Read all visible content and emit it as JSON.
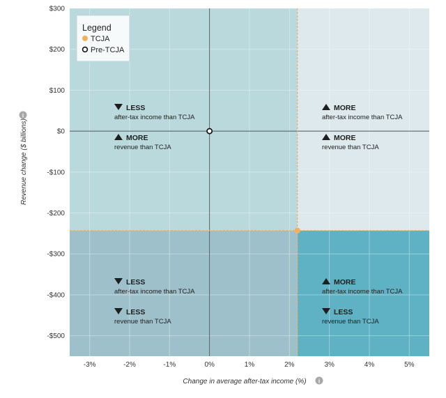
{
  "chart_data": {
    "type": "scatter",
    "xlabel": "Change in average after-tax income (%)",
    "ylabel": "Revenue change ($ billions)",
    "xlim": [
      -3.5,
      5.5
    ],
    "ylim": [
      -550,
      300
    ],
    "x_ticks": [
      -3,
      -2,
      -1,
      0,
      1,
      2,
      3,
      4,
      5
    ],
    "x_tick_labels": [
      "-3%",
      "-2%",
      "-1%",
      "0%",
      "1%",
      "2%",
      "3%",
      "4%",
      "5%"
    ],
    "y_ticks": [
      300,
      200,
      100,
      0,
      -100,
      -200,
      -300,
      -400,
      -500
    ],
    "y_tick_labels": [
      "$300",
      "$200",
      "$100",
      "$0",
      "-$100",
      "-$200",
      "-$300",
      "-$400",
      "-$500"
    ],
    "grid": true,
    "legend": {
      "title": "Legend",
      "placement": "top-left",
      "items": [
        {
          "label": "TCJA",
          "color": "#f0b060",
          "marker": "filled-circle"
        },
        {
          "label": "Pre-TCJA",
          "color": "#111111",
          "marker": "open-circle"
        }
      ]
    },
    "series": [
      {
        "name": "TCJA",
        "color": "#f0b060",
        "points": [
          {
            "x": 2.2,
            "y": -243
          }
        ]
      },
      {
        "name": "Pre-TCJA",
        "color": "#111111",
        "points": [
          {
            "x": 0,
            "y": 0
          }
        ]
      }
    ],
    "reference_lines": {
      "x": 2.2,
      "y": -243,
      "color": "#f0b060"
    },
    "quadrants": [
      {
        "id": "top-left",
        "fill": "#b9d9dd",
        "lines": [
          {
            "direction": "down",
            "word": "LESS",
            "text": "after-tax income than TCJA"
          },
          {
            "direction": "up",
            "word": "MORE",
            "text": "revenue than TCJA"
          }
        ]
      },
      {
        "id": "top-right",
        "fill": "#dde9ec",
        "lines": [
          {
            "direction": "up",
            "word": "MORE",
            "text": "after-tax income than TCJA"
          },
          {
            "direction": "up",
            "word": "MORE",
            "text": "revenue than TCJA"
          }
        ]
      },
      {
        "id": "bottom-left",
        "fill": "#9ec0cb",
        "lines": [
          {
            "direction": "down",
            "word": "LESS",
            "text": "after-tax income than TCJA"
          },
          {
            "direction": "down",
            "word": "LESS",
            "text": "revenue than TCJA"
          }
        ]
      },
      {
        "id": "bottom-right",
        "fill": "#5fb2c3",
        "lines": [
          {
            "direction": "up",
            "word": "MORE",
            "text": "after-tax income than TCJA"
          },
          {
            "direction": "down",
            "word": "LESS",
            "text": "revenue than TCJA"
          }
        ]
      }
    ],
    "info_icons": [
      "info-icon",
      "info-icon"
    ]
  }
}
